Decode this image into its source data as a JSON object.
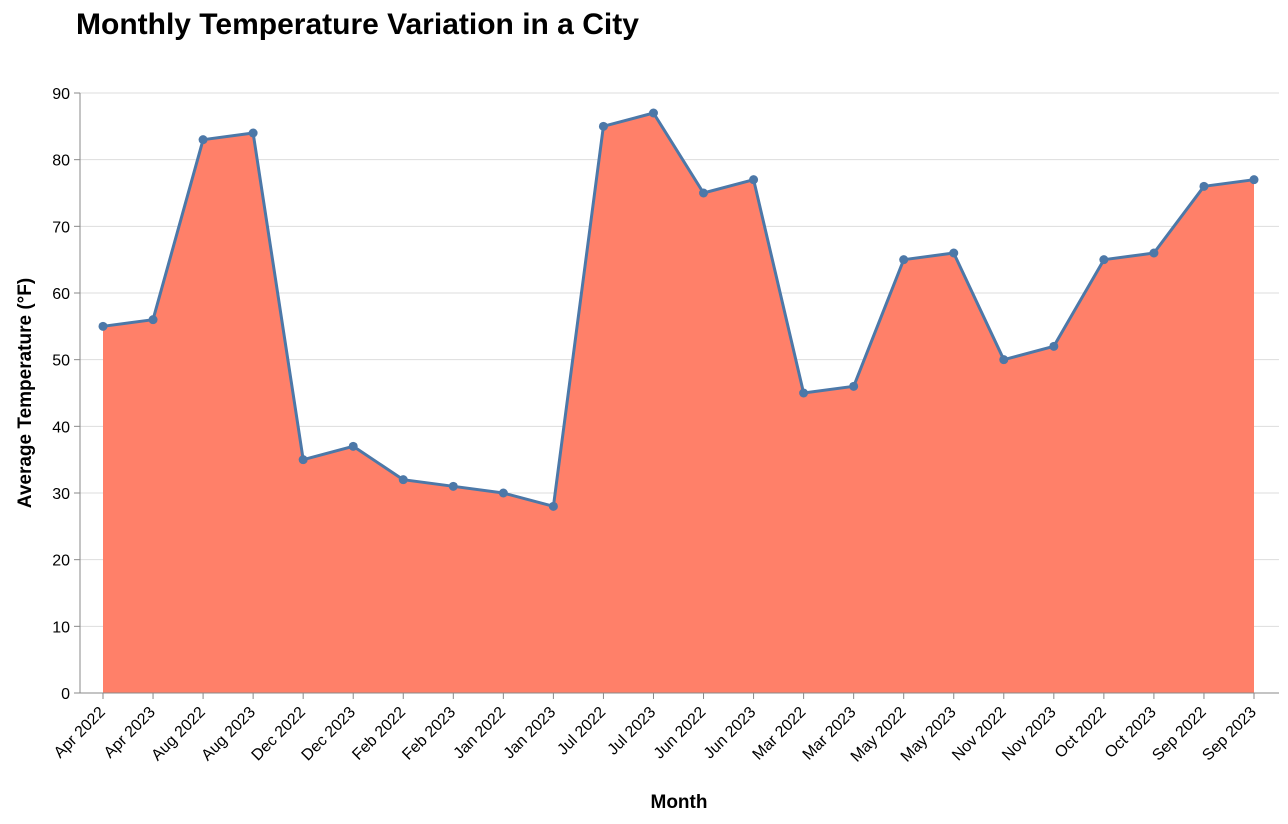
{
  "chart_data": {
    "type": "area",
    "title": "Monthly Temperature Variation in a City",
    "xlabel": "Month",
    "ylabel": "Average Temperature (°F)",
    "ylim": [
      0,
      90
    ],
    "yticks": [
      0,
      10,
      20,
      30,
      40,
      50,
      60,
      70,
      80,
      90
    ],
    "grid": true,
    "categories": [
      "Apr 2022",
      "Apr 2023",
      "Aug 2022",
      "Aug 2023",
      "Dec 2022",
      "Dec 2023",
      "Feb 2022",
      "Feb 2023",
      "Jan 2022",
      "Jan 2023",
      "Jul 2022",
      "Jul 2023",
      "Jun 2022",
      "Jun 2023",
      "Mar 2022",
      "Mar 2023",
      "May 2022",
      "May 2023",
      "Nov 2022",
      "Nov 2023",
      "Oct 2022",
      "Oct 2023",
      "Sep 2022",
      "Sep 2023"
    ],
    "values": [
      55,
      56,
      83,
      84,
      35,
      37,
      32,
      31,
      30,
      28,
      85,
      87,
      75,
      77,
      45,
      46,
      65,
      66,
      50,
      52,
      65,
      66,
      76,
      77
    ],
    "colors": {
      "area": "#ff8069",
      "line": "#4c78a8",
      "grid": "#dddddd",
      "axis": "#888888"
    }
  }
}
